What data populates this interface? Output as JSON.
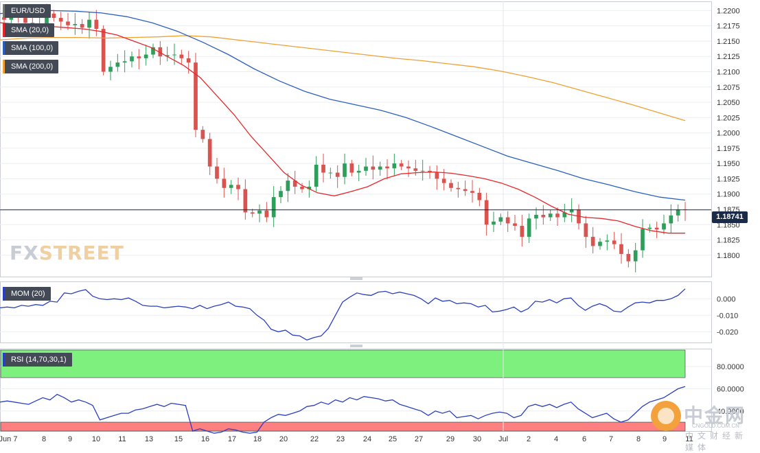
{
  "chart_data": [
    {
      "type": "candlestick",
      "symbol": "EUR/USD",
      "ylim": [
        1.1765,
        1.2215
      ],
      "y_ticks": [
        "1.2200",
        "1.2175",
        "1.2150",
        "1.2125",
        "1.2100",
        "1.2075",
        "1.2050",
        "1.2025",
        "1.2000",
        "1.1975",
        "1.1950",
        "1.1925",
        "1.1900",
        "1.1875",
        "1.1850",
        "1.1825",
        "1.1800"
      ],
      "last_price": "1.18741",
      "x_tick_labels": [
        "Jun 7",
        "8",
        "9",
        "10",
        "11",
        "13",
        "15",
        "16",
        "17",
        "18",
        "20",
        "22",
        "23",
        "24",
        "25",
        "27",
        "29",
        "30",
        "Jul",
        "2",
        "4",
        "6",
        "7",
        "8",
        "9",
        "11"
      ],
      "sma_labels": [
        "SMA (20,0)",
        "SMA (100,0)",
        "SMA (200,0)"
      ],
      "series_colors": {
        "sma20": "#e8262a",
        "sma100": "#2a5fbf",
        "sma200": "#f0a030",
        "up": "#2e9e5a",
        "down": "#d9534f"
      },
      "candles_close_approx": [
        1.2185,
        1.2192,
        1.2188,
        1.218,
        1.2176,
        1.2178,
        1.2195,
        1.2188,
        1.2182,
        1.2176,
        1.2178,
        1.2172,
        1.2185,
        1.217,
        1.21,
        1.2108,
        1.2115,
        1.2117,
        1.2125,
        1.2122,
        1.2128,
        1.214,
        1.2125,
        1.2127,
        1.2128,
        1.2122,
        1.2115,
        1.2005,
        1.199,
        1.1945,
        1.1925,
        1.191,
        1.1915,
        1.1908,
        1.187,
        1.1868,
        1.1873,
        1.1862,
        1.1895,
        1.1905,
        1.1922,
        1.1912,
        1.1908,
        1.1912,
        1.1948,
        1.1935,
        1.1935,
        1.1928,
        1.195,
        1.1935,
        1.1938,
        1.1945,
        1.194,
        1.1945,
        1.1942,
        1.195,
        1.1945,
        1.1942,
        1.1938,
        1.1938,
        1.1935,
        1.1925,
        1.1918,
        1.191,
        1.1908,
        1.1905,
        1.1902,
        1.189,
        1.185,
        1.1855,
        1.1862,
        1.1852,
        1.1848,
        1.183,
        1.186,
        1.1866,
        1.1862,
        1.1868,
        1.1862,
        1.187,
        1.1875,
        1.1852,
        1.183,
        1.1815,
        1.1822,
        1.1824,
        1.1818,
        1.1802,
        1.179,
        1.1808,
        1.1843,
        1.1845,
        1.1842,
        1.1852,
        1.1865,
        1.1875,
        1.18741
      ],
      "sma20_approx": [
        1.218,
        1.2178,
        1.2176,
        1.2174,
        1.2172,
        1.217,
        1.2166,
        1.216,
        1.215,
        1.214,
        1.2125,
        1.211,
        1.209,
        1.206,
        1.203,
        1.1995,
        1.1965,
        1.1935,
        1.1915,
        1.1902,
        1.1897,
        1.1904,
        1.1912,
        1.1925,
        1.1933,
        1.1935,
        1.1936,
        1.1934,
        1.193,
        1.1925,
        1.1918,
        1.1908,
        1.1895,
        1.188,
        1.1867,
        1.1862,
        1.186,
        1.1856,
        1.1847,
        1.184,
        1.1836,
        1.1836
      ],
      "sma100_approx": [
        1.2195,
        1.2199,
        1.22,
        1.2199,
        1.2196,
        1.219,
        1.218,
        1.2166,
        1.2148,
        1.2128,
        1.2105,
        1.2085,
        1.2068,
        1.2055,
        1.2046,
        1.2037,
        1.2025,
        1.201,
        1.1994,
        1.1978,
        1.1962,
        1.195,
        1.1938,
        1.1925,
        1.1915,
        1.1904,
        1.1895,
        1.189
      ],
      "sma200_approx": [
        1.2152,
        1.2155,
        1.2156,
        1.2156,
        1.2155,
        1.2156,
        1.2157,
        1.2159,
        1.2157,
        1.2152,
        1.2147,
        1.2142,
        1.2137,
        1.2132,
        1.2127,
        1.2122,
        1.2118,
        1.2113,
        1.2108,
        1.2101,
        1.2092,
        1.2082,
        1.207,
        1.2058,
        1.2046,
        1.2033,
        1.202
      ]
    },
    {
      "type": "line",
      "name": "MOM (20)",
      "ylim": [
        -0.0265,
        0.0105
      ],
      "y_ticks": [
        "0.000",
        "-0.010",
        "-0.020"
      ],
      "values_approx": [
        -0.0055,
        -0.005,
        -0.0055,
        -0.004,
        -0.0045,
        -0.0035,
        -0.004,
        -0.0015,
        -0.002,
        0.0035,
        0.003,
        0.0045,
        0.0055,
        0.0015,
        0.0,
        -0.0005,
        0.0,
        -0.0005,
        0.0005,
        -0.0015,
        -0.004,
        -0.0045,
        -0.0045,
        -0.0055,
        -0.005,
        -0.0045,
        -0.005,
        -0.006,
        -0.004,
        -0.006,
        -0.0045,
        -0.0035,
        -0.002,
        -0.0045,
        -0.005,
        -0.006,
        -0.01,
        -0.013,
        -0.0185,
        -0.02,
        -0.019,
        -0.022,
        -0.0225,
        -0.025,
        -0.0235,
        -0.0225,
        -0.018,
        -0.01,
        -0.002,
        0.001,
        0.0035,
        0.0025,
        0.002,
        0.004,
        0.0045,
        0.003,
        0.004,
        0.003,
        0.002,
        0.0,
        -0.003,
        0.0005,
        -0.0015,
        -0.001,
        -0.003,
        -0.0025,
        -0.003,
        -0.005,
        -0.004,
        -0.008,
        -0.0075,
        -0.0065,
        -0.005,
        -0.008,
        -0.006,
        -0.0015,
        -0.002,
        -0.0005,
        -0.0025,
        0.0,
        0.0005,
        -0.004,
        -0.007,
        -0.0045,
        -0.003,
        -0.0045,
        -0.0075,
        -0.008,
        -0.005,
        -0.0025,
        -0.002,
        -0.0025,
        -0.001,
        -0.001,
        0.0,
        0.002,
        0.006
      ]
    },
    {
      "type": "line",
      "name": "RSI (14,70,30,1)",
      "ylim": [
        22,
        96
      ],
      "y_ticks": [
        "80.0000",
        "60.0000",
        "40.0000"
      ],
      "overbought": 70,
      "oversold": 30,
      "values_approx": [
        48,
        49,
        48,
        47,
        46,
        49,
        52,
        50,
        55,
        52,
        48,
        50,
        48,
        45,
        32,
        34,
        36,
        38,
        38,
        41,
        42,
        44,
        46,
        44,
        47,
        46,
        45,
        22,
        24,
        22,
        20,
        21,
        24,
        23,
        21,
        20,
        21,
        30,
        34,
        37,
        36,
        38,
        40,
        44,
        45,
        48,
        46,
        50,
        48,
        52,
        50,
        53,
        52,
        51,
        49,
        50,
        46,
        44,
        42,
        40,
        36,
        40,
        38,
        40,
        34,
        35,
        36,
        33,
        36,
        38,
        39,
        38,
        34,
        36,
        44,
        46,
        44,
        46,
        43,
        46,
        48,
        42,
        38,
        34,
        36,
        38,
        33,
        30,
        32,
        38,
        44,
        48,
        50,
        52,
        56,
        60,
        62
      ]
    }
  ],
  "labels": {
    "symbol": "EUR/USD",
    "sma20": "SMA (20,0)",
    "sma100": "SMA (100,0)",
    "sma200": "SMA (200,0)",
    "mom": "MOM (20)",
    "rsi": "RSI (14,70,30,1)",
    "price_tag": "1.18741"
  },
  "branding": {
    "fx": "FX",
    "street": "STREET",
    "watermark_cn": "中金网",
    "watermark_domain": "CNGOLD.COM.CN",
    "watermark_sub": "中文财经新媒体"
  }
}
